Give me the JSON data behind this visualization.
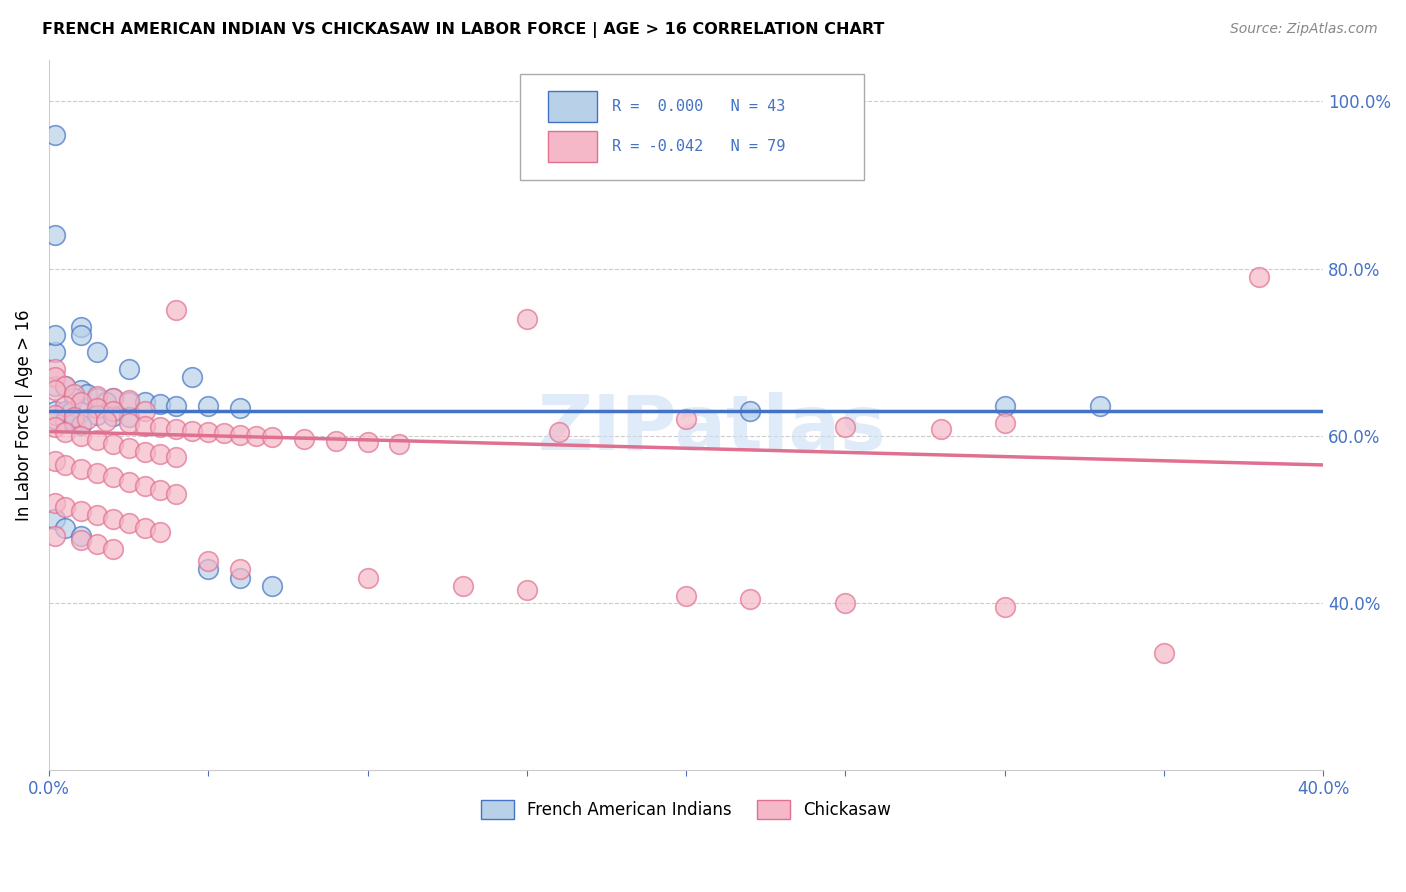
{
  "title": "FRENCH AMERICAN INDIAN VS CHICKASAW IN LABOR FORCE | AGE > 16 CORRELATION CHART",
  "source": "Source: ZipAtlas.com",
  "ylabel": "In Labor Force | Age > 16",
  "xlim": [
    0.0,
    0.4
  ],
  "ylim": [
    0.2,
    1.05
  ],
  "xticks": [
    0.0,
    0.05,
    0.1,
    0.15,
    0.2,
    0.25,
    0.3,
    0.35,
    0.4
  ],
  "xticklabels": [
    "0.0%",
    "",
    "",
    "",
    "",
    "",
    "",
    "",
    "40.0%"
  ],
  "yticks": [
    0.4,
    0.6,
    0.8,
    1.0
  ],
  "yticklabels_right": [
    "40.0%",
    "60.0%",
    "80.0%",
    "100.0%"
  ],
  "legend_r1": "R =  0.000",
  "legend_n1": "N = 43",
  "legend_r2": "R = -0.042",
  "legend_n2": "N = 79",
  "color_blue": "#b8d0e8",
  "color_pink": "#f5b8c8",
  "line_blue": "#4472c4",
  "line_pink": "#e07090",
  "tick_color": "#4472c4",
  "watermark": "ZIPatlas",
  "grid_color": "#cccccc",
  "blue_trend_y": [
    0.63,
    0.63
  ],
  "pink_trend_y": [
    0.605,
    0.565
  ],
  "scatter_blue": [
    [
      0.002,
      0.96
    ],
    [
      0.002,
      0.84
    ],
    [
      0.01,
      0.73
    ],
    [
      0.002,
      0.7
    ],
    [
      0.015,
      0.7
    ],
    [
      0.002,
      0.72
    ],
    [
      0.01,
      0.72
    ],
    [
      0.025,
      0.68
    ],
    [
      0.045,
      0.67
    ],
    [
      0.002,
      0.66
    ],
    [
      0.005,
      0.66
    ],
    [
      0.01,
      0.655
    ],
    [
      0.012,
      0.65
    ],
    [
      0.008,
      0.645
    ],
    [
      0.015,
      0.645
    ],
    [
      0.02,
      0.645
    ],
    [
      0.018,
      0.64
    ],
    [
      0.025,
      0.64
    ],
    [
      0.03,
      0.64
    ],
    [
      0.035,
      0.638
    ],
    [
      0.04,
      0.636
    ],
    [
      0.05,
      0.635
    ],
    [
      0.06,
      0.633
    ],
    [
      0.002,
      0.63
    ],
    [
      0.005,
      0.63
    ],
    [
      0.007,
      0.628
    ],
    [
      0.01,
      0.628
    ],
    [
      0.015,
      0.625
    ],
    [
      0.02,
      0.623
    ],
    [
      0.025,
      0.622
    ],
    [
      0.002,
      0.62
    ],
    [
      0.005,
      0.618
    ],
    [
      0.008,
      0.616
    ],
    [
      0.01,
      0.613
    ],
    [
      0.002,
      0.5
    ],
    [
      0.005,
      0.49
    ],
    [
      0.01,
      0.48
    ],
    [
      0.05,
      0.44
    ],
    [
      0.06,
      0.43
    ],
    [
      0.07,
      0.42
    ],
    [
      0.3,
      0.635
    ],
    [
      0.22,
      0.63
    ],
    [
      0.33,
      0.636
    ]
  ],
  "scatter_pink": [
    [
      0.002,
      0.68
    ],
    [
      0.002,
      0.67
    ],
    [
      0.005,
      0.66
    ],
    [
      0.002,
      0.655
    ],
    [
      0.008,
      0.65
    ],
    [
      0.015,
      0.648
    ],
    [
      0.02,
      0.645
    ],
    [
      0.025,
      0.643
    ],
    [
      0.01,
      0.64
    ],
    [
      0.005,
      0.635
    ],
    [
      0.015,
      0.633
    ],
    [
      0.02,
      0.63
    ],
    [
      0.03,
      0.63
    ],
    [
      0.002,
      0.625
    ],
    [
      0.008,
      0.622
    ],
    [
      0.012,
      0.62
    ],
    [
      0.018,
      0.618
    ],
    [
      0.025,
      0.615
    ],
    [
      0.03,
      0.612
    ],
    [
      0.035,
      0.61
    ],
    [
      0.04,
      0.608
    ],
    [
      0.045,
      0.606
    ],
    [
      0.05,
      0.605
    ],
    [
      0.055,
      0.603
    ],
    [
      0.06,
      0.601
    ],
    [
      0.065,
      0.6
    ],
    [
      0.07,
      0.598
    ],
    [
      0.08,
      0.596
    ],
    [
      0.09,
      0.594
    ],
    [
      0.1,
      0.592
    ],
    [
      0.11,
      0.59
    ],
    [
      0.002,
      0.61
    ],
    [
      0.005,
      0.605
    ],
    [
      0.01,
      0.6
    ],
    [
      0.015,
      0.595
    ],
    [
      0.02,
      0.59
    ],
    [
      0.025,
      0.585
    ],
    [
      0.03,
      0.58
    ],
    [
      0.035,
      0.578
    ],
    [
      0.04,
      0.575
    ],
    [
      0.002,
      0.57
    ],
    [
      0.005,
      0.565
    ],
    [
      0.01,
      0.56
    ],
    [
      0.015,
      0.555
    ],
    [
      0.02,
      0.55
    ],
    [
      0.025,
      0.545
    ],
    [
      0.03,
      0.54
    ],
    [
      0.035,
      0.535
    ],
    [
      0.04,
      0.53
    ],
    [
      0.002,
      0.52
    ],
    [
      0.005,
      0.515
    ],
    [
      0.01,
      0.51
    ],
    [
      0.015,
      0.505
    ],
    [
      0.02,
      0.5
    ],
    [
      0.025,
      0.495
    ],
    [
      0.03,
      0.49
    ],
    [
      0.035,
      0.485
    ],
    [
      0.002,
      0.48
    ],
    [
      0.01,
      0.475
    ],
    [
      0.015,
      0.47
    ],
    [
      0.02,
      0.465
    ],
    [
      0.05,
      0.45
    ],
    [
      0.06,
      0.44
    ],
    [
      0.1,
      0.43
    ],
    [
      0.13,
      0.42
    ],
    [
      0.15,
      0.415
    ],
    [
      0.2,
      0.408
    ],
    [
      0.22,
      0.405
    ],
    [
      0.25,
      0.4
    ],
    [
      0.3,
      0.395
    ],
    [
      0.04,
      0.75
    ],
    [
      0.15,
      0.74
    ],
    [
      0.38,
      0.79
    ],
    [
      0.2,
      0.62
    ],
    [
      0.3,
      0.615
    ],
    [
      0.25,
      0.61
    ],
    [
      0.28,
      0.608
    ],
    [
      0.16,
      0.605
    ],
    [
      0.35,
      0.34
    ]
  ]
}
